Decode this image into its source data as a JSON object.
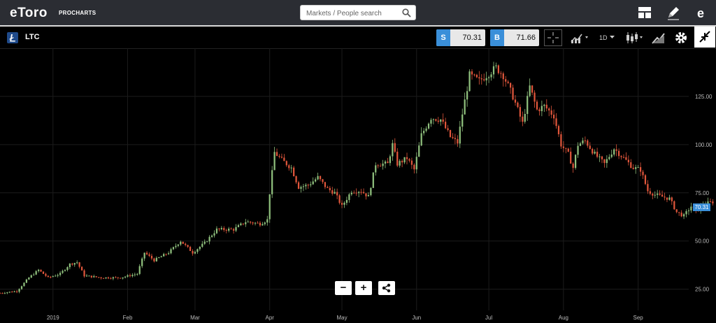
{
  "header": {
    "logo": "eToro",
    "logo_sub": "PROCHARTS",
    "search_placeholder": "Markets / People search"
  },
  "toolbar": {
    "asset": "LTC",
    "sell_label": "S",
    "sell_price": "70.31",
    "buy_label": "B",
    "buy_price": "71.66",
    "timeframe": "1D"
  },
  "colors": {
    "up": "#8fc07d",
    "down": "#e0563b",
    "grid": "#1c1c1c",
    "accent": "#3a8fd9"
  },
  "chart_data": {
    "type": "candlestick",
    "y_ticks": [
      "125.00",
      "100.00",
      "75.00",
      "50.00",
      "25.00"
    ],
    "y_tick_values": [
      125,
      100,
      75,
      50,
      25
    ],
    "x_ticks": [
      "2019",
      "Feb",
      "Mar",
      "Apr",
      "May",
      "Jun",
      "Jul",
      "Aug",
      "Sep"
    ],
    "x_tick_days": [
      0,
      31,
      59,
      90,
      120,
      151,
      181,
      212,
      243
    ],
    "x_start_day": -22,
    "x_end_day": 252,
    "ylim": [
      14,
      150
    ],
    "last_price": "70.31",
    "series": [
      {
        "day": -22,
        "price": 23
      },
      {
        "day": -15,
        "price": 24
      },
      {
        "day": -10,
        "price": 31
      },
      {
        "day": -6,
        "price": 35
      },
      {
        "day": -2,
        "price": 31
      },
      {
        "day": 3,
        "price": 33
      },
      {
        "day": 7,
        "price": 38
      },
      {
        "day": 10,
        "price": 39
      },
      {
        "day": 13,
        "price": 32
      },
      {
        "day": 20,
        "price": 31
      },
      {
        "day": 28,
        "price": 31
      },
      {
        "day": 35,
        "price": 33
      },
      {
        "day": 38,
        "price": 44
      },
      {
        "day": 42,
        "price": 40
      },
      {
        "day": 48,
        "price": 44
      },
      {
        "day": 53,
        "price": 50
      },
      {
        "day": 58,
        "price": 44
      },
      {
        "day": 63,
        "price": 49
      },
      {
        "day": 68,
        "price": 56
      },
      {
        "day": 75,
        "price": 56
      },
      {
        "day": 80,
        "price": 60
      },
      {
        "day": 86,
        "price": 59
      },
      {
        "day": 89,
        "price": 61
      },
      {
        "day": 90,
        "price": 75
      },
      {
        "day": 92,
        "price": 96
      },
      {
        "day": 95,
        "price": 92
      },
      {
        "day": 99,
        "price": 88
      },
      {
        "day": 102,
        "price": 78
      },
      {
        "day": 106,
        "price": 79
      },
      {
        "day": 110,
        "price": 83
      },
      {
        "day": 114,
        "price": 77
      },
      {
        "day": 117,
        "price": 75
      },
      {
        "day": 120,
        "price": 68
      },
      {
        "day": 124,
        "price": 76
      },
      {
        "day": 128,
        "price": 76
      },
      {
        "day": 131,
        "price": 73
      },
      {
        "day": 134,
        "price": 90
      },
      {
        "day": 139,
        "price": 90
      },
      {
        "day": 141,
        "price": 100
      },
      {
        "day": 143,
        "price": 90
      },
      {
        "day": 147,
        "price": 93
      },
      {
        "day": 150,
        "price": 87
      },
      {
        "day": 153,
        "price": 105
      },
      {
        "day": 157,
        "price": 114
      },
      {
        "day": 161,
        "price": 113
      },
      {
        "day": 165,
        "price": 104
      },
      {
        "day": 168,
        "price": 101
      },
      {
        "day": 170,
        "price": 116
      },
      {
        "day": 173,
        "price": 136
      },
      {
        "day": 177,
        "price": 133
      },
      {
        "day": 181,
        "price": 137
      },
      {
        "day": 184,
        "price": 140
      },
      {
        "day": 187,
        "price": 136
      },
      {
        "day": 191,
        "price": 125
      },
      {
        "day": 195,
        "price": 111
      },
      {
        "day": 198,
        "price": 130
      },
      {
        "day": 201,
        "price": 118
      },
      {
        "day": 204,
        "price": 120
      },
      {
        "day": 208,
        "price": 115
      },
      {
        "day": 211,
        "price": 100
      },
      {
        "day": 214,
        "price": 95
      },
      {
        "day": 216,
        "price": 88
      },
      {
        "day": 218,
        "price": 100
      },
      {
        "day": 221,
        "price": 102
      },
      {
        "day": 225,
        "price": 95
      },
      {
        "day": 229,
        "price": 90
      },
      {
        "day": 233,
        "price": 98
      },
      {
        "day": 237,
        "price": 93
      },
      {
        "day": 241,
        "price": 88
      },
      {
        "day": 244,
        "price": 87
      },
      {
        "day": 247,
        "price": 76
      },
      {
        "day": 250,
        "price": 74
      },
      {
        "day": 253,
        "price": 73
      },
      {
        "day": 256,
        "price": 72
      },
      {
        "day": 259,
        "price": 65
      },
      {
        "day": 262,
        "price": 63
      },
      {
        "day": 265,
        "price": 68
      },
      {
        "day": 267,
        "price": 65
      },
      {
        "day": 270,
        "price": 69
      },
      {
        "day": 274,
        "price": 70.31
      }
    ]
  }
}
